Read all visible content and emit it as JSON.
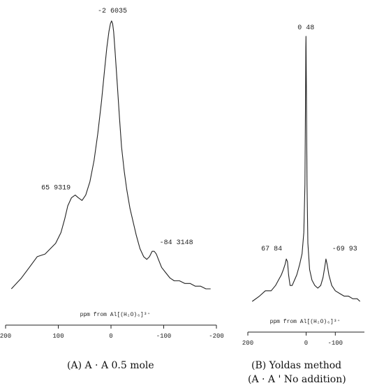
{
  "chart_data": [
    {
      "type": "line",
      "panel_caption": "(A) A · A    0.5 mole",
      "xlabel": "ppm from Al[(H₂O)₆]³⁺",
      "xlim": [
        200,
        -200
      ],
      "x_ticks": [
        "200",
        "100",
        "0",
        "-100",
        "-200"
      ],
      "x_tick_values": [
        200,
        100,
        0,
        -100,
        -200
      ],
      "ylim": [
        0,
        100
      ],
      "peaks": [
        {
          "label": "-2 6035",
          "x": -2.6,
          "y": 100
        },
        {
          "label": "65 9319",
          "x": 65.9,
          "y": 35
        },
        {
          "label": "-84 3148",
          "x": -84.3,
          "y": 14
        }
      ],
      "series": [
        {
          "x": [
            189,
            170,
            155,
            140,
            125,
            115,
            105,
            95,
            88,
            82,
            75,
            68,
            62,
            55,
            48,
            40,
            32,
            25,
            18,
            12,
            8,
            4,
            1,
            -1,
            -3,
            -5,
            -8,
            -12,
            -16,
            -20,
            -25,
            -30,
            -36,
            -42,
            -48,
            -55,
            -62,
            -68,
            -73,
            -78,
            -82,
            -86,
            -90,
            -96,
            -104,
            -112,
            -120,
            -130,
            -140,
            -150,
            -160,
            -170,
            -180,
            -189
          ],
          "y": [
            0,
            4,
            8,
            12,
            13,
            15,
            17,
            21,
            26,
            31,
            34,
            35,
            34,
            33,
            35,
            40,
            48,
            58,
            70,
            82,
            90,
            96,
            99,
            100,
            99,
            96,
            88,
            76,
            64,
            53,
            44,
            37,
            30,
            25,
            20,
            15,
            12,
            11,
            12,
            14,
            14,
            13,
            11,
            8,
            6,
            4,
            3,
            3,
            2,
            2,
            1,
            1,
            0,
            0
          ]
        }
      ]
    },
    {
      "type": "line",
      "panel_caption_line1": "(B)  Yoldas method",
      "panel_caption_line2": "(A · A ' No addition)",
      "xlabel": "ppm from Al[(H₂O)₆]³⁺",
      "xlim": [
        200,
        -200
      ],
      "x_ticks": [
        "200",
        "0",
        "-100"
      ],
      "x_tick_values": [
        200,
        0,
        -100
      ],
      "ylim": [
        0,
        100
      ],
      "peaks": [
        {
          "label": "0 48",
          "x": 0.48,
          "y": 100
        },
        {
          "label": "67 84",
          "x": 67.8,
          "y": 16
        },
        {
          "label": "-69 93",
          "x": -69.9,
          "y": 16
        }
      ],
      "series": [
        {
          "x": [
            185,
            160,
            140,
            120,
            105,
            95,
            85,
            78,
            72,
            68,
            64,
            60,
            55,
            48,
            40,
            32,
            22,
            14,
            8,
            4,
            2,
            1,
            0.5,
            -1,
            -3,
            -6,
            -12,
            -20,
            -30,
            -40,
            -50,
            -58,
            -64,
            -68,
            -72,
            -78,
            -88,
            -100,
            -115,
            -130,
            -145,
            -160,
            -175,
            -185
          ],
          "y": [
            0,
            2,
            4,
            4,
            6,
            8,
            10,
            12,
            14,
            16,
            15,
            10,
            6,
            6,
            8,
            10,
            14,
            18,
            26,
            44,
            78,
            96,
            100,
            80,
            44,
            22,
            12,
            8,
            6,
            5,
            6,
            9,
            13,
            16,
            14,
            10,
            6,
            4,
            3,
            2,
            2,
            1,
            1,
            0
          ]
        }
      ]
    }
  ]
}
